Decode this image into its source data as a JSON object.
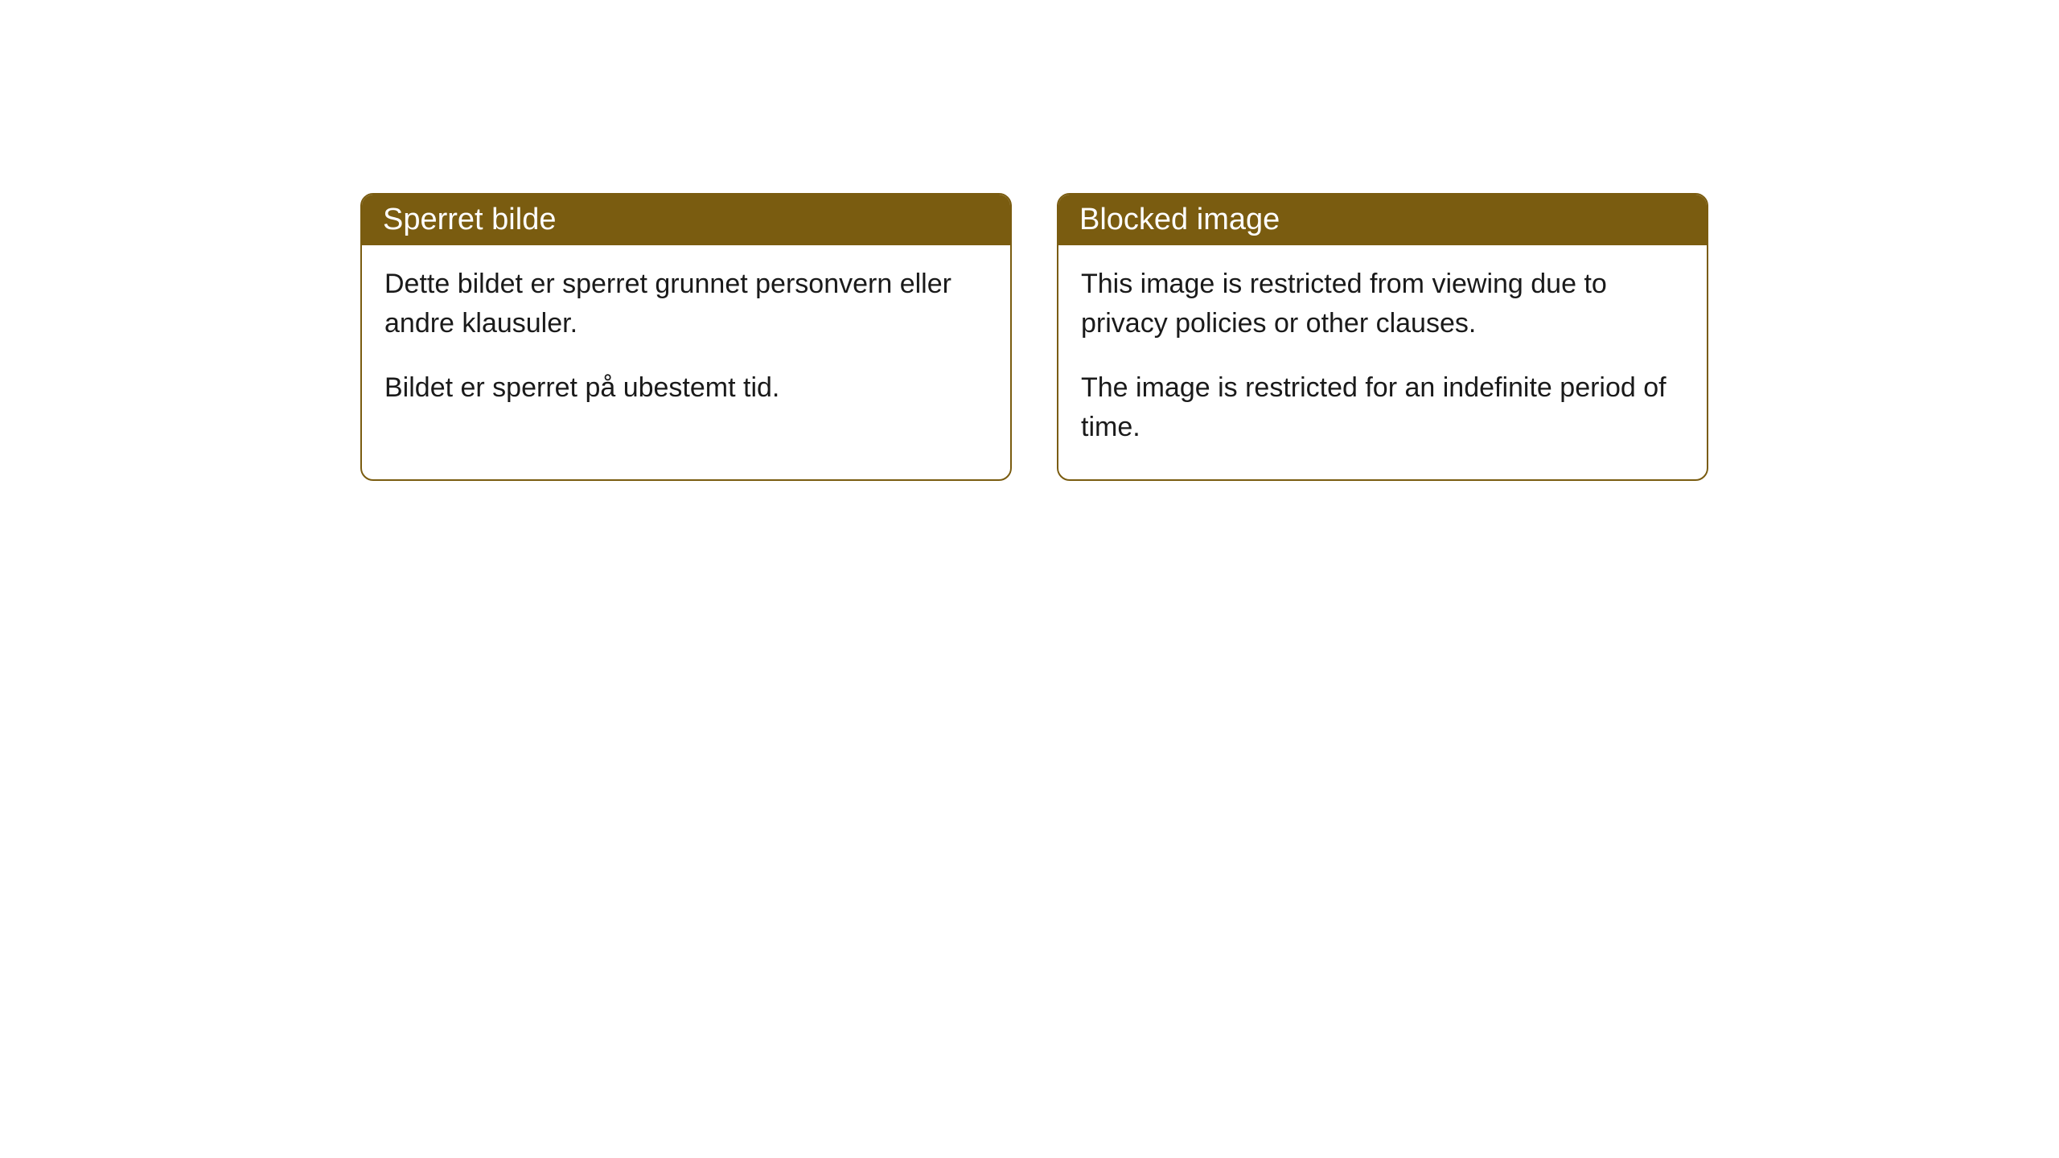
{
  "cards": [
    {
      "title": "Sperret bilde",
      "paragraph1": "Dette bildet er sperret grunnet personvern eller andre klausuler.",
      "paragraph2": "Bildet er sperret på ubestemt tid."
    },
    {
      "title": "Blocked image",
      "paragraph1": "This image is restricted from viewing due to privacy policies or other clauses.",
      "paragraph2": "The image is restricted for an indefinite period of time."
    }
  ],
  "styling": {
    "header_background": "#7a5c10",
    "header_text_color": "#ffffff",
    "border_color": "#7a5c10",
    "body_background": "#ffffff",
    "body_text_color": "#1a1a1a",
    "border_radius": 16,
    "header_fontsize": 38,
    "body_fontsize": 34
  }
}
